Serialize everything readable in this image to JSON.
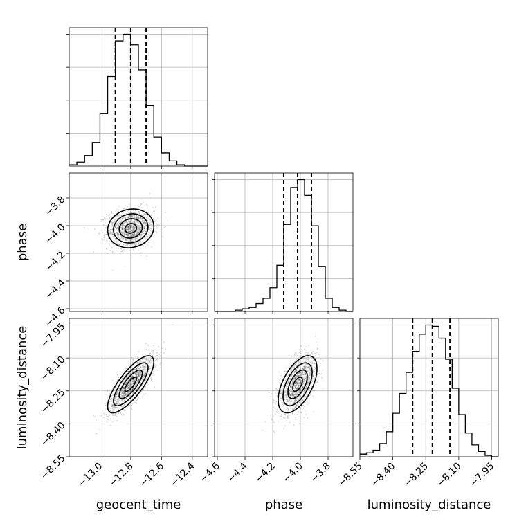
{
  "chart_data": {
    "type": "corner",
    "parameters": [
      "geocent_time",
      "phase",
      "luminosity_distance"
    ],
    "axis_labels": {
      "geocent_time": "geocent_time",
      "phase": "phase",
      "luminosity_distance": "luminosity_distance"
    },
    "ranges": {
      "geocent_time": [
        -13.2,
        -12.3
      ],
      "phase": [
        -4.62,
        -3.62
      ],
      "luminosity_distance": [
        -8.55,
        -7.92
      ]
    },
    "ticks": {
      "geocent_time": [
        "−13.0",
        "−12.8",
        "−12.6",
        "−12.4"
      ],
      "phase": [
        "−4.6",
        "−4.4",
        "−4.2",
        "−4.0",
        "−3.8"
      ],
      "luminosity_distance": [
        "−8.55",
        "−8.40",
        "−8.25",
        "−8.10",
        "−7.95"
      ]
    },
    "tick_values": {
      "geocent_time": [
        -13.0,
        -12.8,
        -12.6,
        -12.4
      ],
      "phase": [
        -4.6,
        -4.4,
        -4.2,
        -4.0,
        -3.8
      ],
      "luminosity_distance": [
        -8.55,
        -8.4,
        -8.25,
        -8.1,
        -7.95
      ]
    },
    "quantiles": {
      "geocent_time": [
        -12.9,
        -12.8,
        -12.7
      ],
      "phase": [
        -4.12,
        -4.02,
        -3.92
      ],
      "luminosity_distance": [
        -8.31,
        -8.22,
        -8.14
      ]
    },
    "histograms": {
      "geocent_time": {
        "bin_edges": [
          -13.2,
          -13.15,
          -13.1,
          -13.05,
          -13.0,
          -12.95,
          -12.9,
          -12.85,
          -12.8,
          -12.75,
          -12.7,
          -12.65,
          -12.6,
          -12.55,
          -12.5,
          -12.45,
          -12.4,
          -12.35,
          -12.3
        ],
        "counts": [
          1,
          3,
          8,
          18,
          40,
          68,
          95,
          100,
          92,
          73,
          46,
          22,
          10,
          4,
          1,
          0,
          0,
          0
        ]
      },
      "phase": {
        "bin_edges": [
          -4.62,
          -4.57,
          -4.52,
          -4.47,
          -4.42,
          -4.37,
          -4.32,
          -4.27,
          -4.22,
          -4.17,
          -4.12,
          -4.07,
          -4.02,
          -3.97,
          -3.92,
          -3.87,
          -3.82,
          -3.77,
          -3.72,
          -3.67,
          -3.62
        ],
        "counts": [
          0,
          0,
          0,
          1,
          2,
          3,
          6,
          10,
          18,
          35,
          66,
          94,
          100,
          88,
          65,
          34,
          10,
          3,
          1,
          0
        ]
      },
      "luminosity_distance": {
        "bin_edges": [
          -8.55,
          -8.52,
          -8.49,
          -8.46,
          -8.43,
          -8.4,
          -8.37,
          -8.34,
          -8.31,
          -8.28,
          -8.25,
          -8.22,
          -8.19,
          -8.16,
          -8.13,
          -8.1,
          -8.07,
          -8.04,
          -8.01,
          -7.98,
          -7.95,
          -7.92
        ],
        "counts": [
          2,
          3,
          5,
          10,
          19,
          33,
          48,
          64,
          80,
          93,
          100,
          99,
          90,
          74,
          52,
          32,
          18,
          9,
          4,
          1,
          0
        ]
      }
    },
    "pair_posteriors": [
      {
        "x": "geocent_time",
        "y": "phase",
        "center": [
          -12.8,
          -4.02
        ],
        "sigma": [
          0.075,
          0.07
        ],
        "correlation": 0.1
      },
      {
        "x": "geocent_time",
        "y": "luminosity_distance",
        "center": [
          -12.8,
          -8.22
        ],
        "sigma": [
          0.075,
          0.065
        ],
        "correlation": 0.78
      },
      {
        "x": "phase",
        "y": "luminosity_distance",
        "center": [
          -4.02,
          -8.22
        ],
        "sigma": [
          0.07,
          0.065
        ],
        "correlation": 0.55
      }
    ],
    "contour_levels_sigma": [
      0.5,
      1.0,
      1.5,
      2.0
    ],
    "grid": true
  }
}
